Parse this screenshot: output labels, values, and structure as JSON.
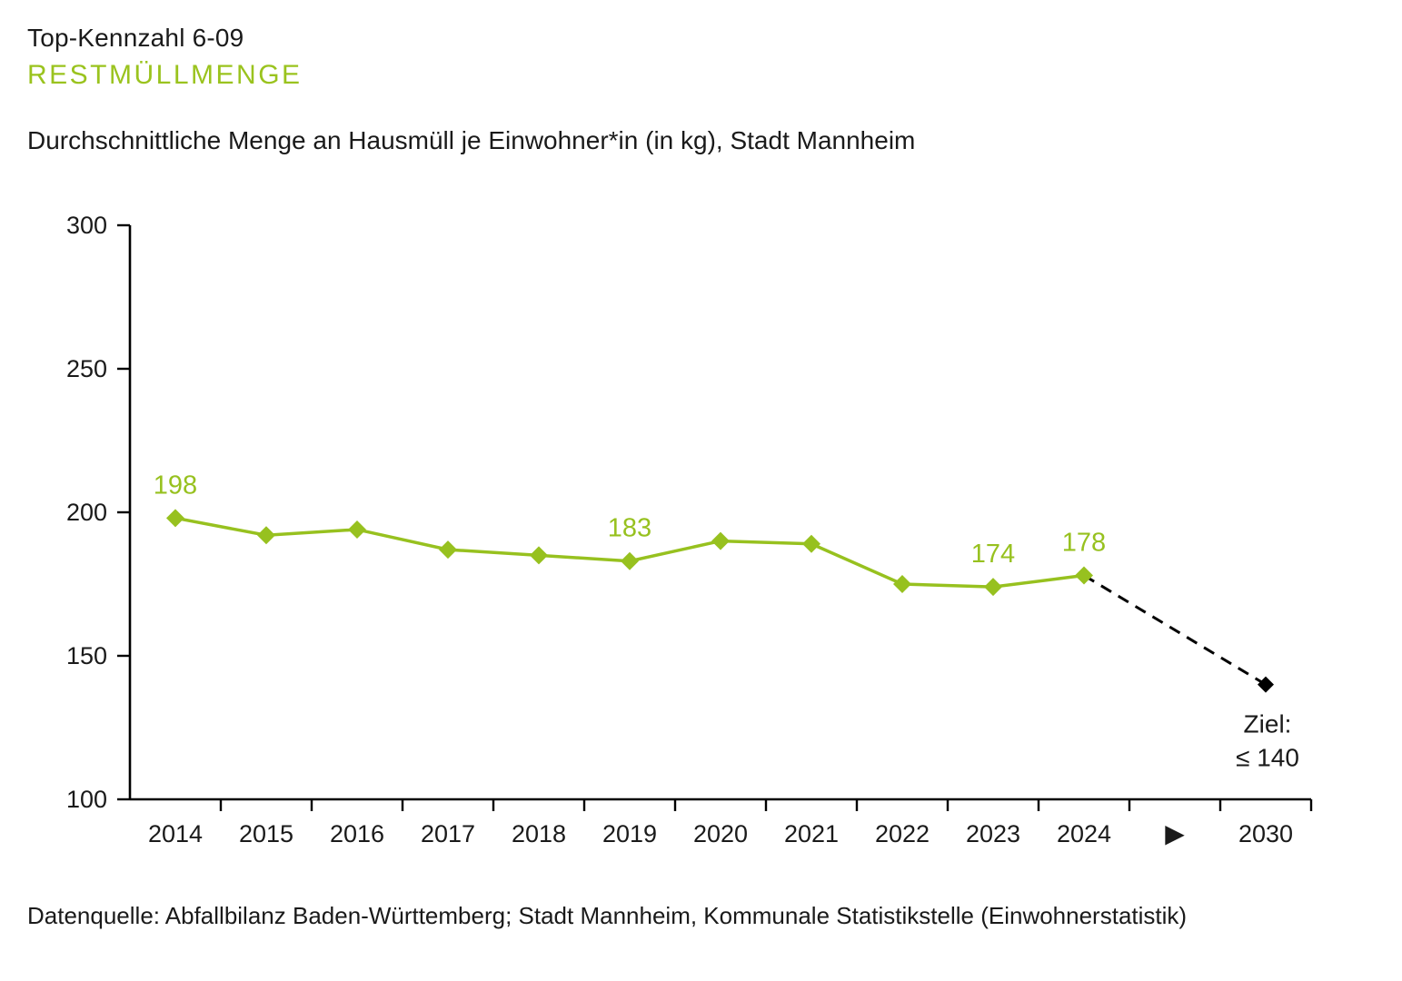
{
  "header": {
    "kennzahl": "Top-Kennzahl 6-09",
    "title": "RESTMÜLLMENGE",
    "subtitle": "Durchschnittliche Menge an Hausmüll je Einwohner*in (in kg), Stadt Mannheim"
  },
  "footer": {
    "source": "Datenquelle: Abfallbilanz Baden-Württemberg; Stadt Mannheim, Kommunale Statistikstelle (Einwohnerstatistik)"
  },
  "colors": {
    "accent_green": "#97c11f",
    "text_black": "#1a1a1a",
    "axis_black": "#000000",
    "target_black": "#000000"
  },
  "chart_data": {
    "type": "line",
    "title": "Durchschnittliche Menge an Hausmüll je Einwohner*in (in kg), Stadt Mannheim",
    "categories": [
      "2014",
      "2015",
      "2016",
      "2017",
      "2018",
      "2019",
      "2020",
      "2021",
      "2022",
      "2023",
      "2024"
    ],
    "values": [
      198,
      192,
      194,
      187,
      185,
      183,
      190,
      189,
      175,
      174,
      178
    ],
    "labeled_points": [
      {
        "category": "2014",
        "value": 198
      },
      {
        "category": "2019",
        "value": 183
      },
      {
        "category": "2023",
        "value": 174
      },
      {
        "category": "2024",
        "value": 178
      }
    ],
    "target": {
      "category": "2030",
      "value": 140,
      "label_line1": "Ziel:",
      "label_line2": "≤ 140",
      "line_style": "dashed"
    },
    "x_axis_labels": [
      "2014",
      "2015",
      "2016",
      "2017",
      "2018",
      "2019",
      "2020",
      "2021",
      "2022",
      "2023",
      "2024",
      "▶",
      "2030"
    ],
    "arrow_glyph": "▶",
    "ylim": [
      100,
      300
    ],
    "yticks": [
      100,
      150,
      200,
      250,
      300
    ],
    "xlabel": "",
    "ylabel": "",
    "grid": false,
    "legend": false,
    "series_color": "#97c11f",
    "target_color": "#000000"
  }
}
